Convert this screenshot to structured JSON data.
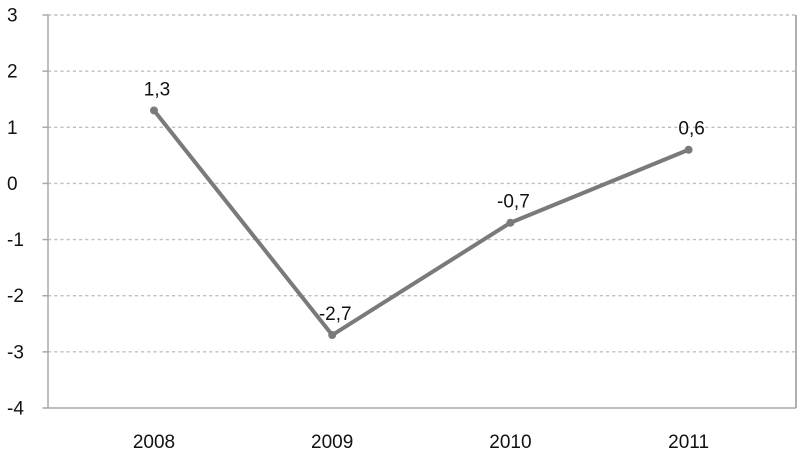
{
  "chart_data": {
    "type": "line",
    "title": "",
    "xlabel": "",
    "ylabel": "",
    "categories": [
      "2008",
      "2009",
      "2010",
      "2011"
    ],
    "series": [
      {
        "name": "value-by-year",
        "values": [
          1.3,
          -2.7,
          -0.7,
          0.6
        ],
        "point_labels": [
          "1,3",
          "-2,7",
          "-0,7",
          "0,6"
        ]
      }
    ],
    "ylim": [
      -4,
      3
    ],
    "ytick_step": 1,
    "ytick_labels": [
      "3",
      "2",
      "1",
      "0",
      "-1",
      "-2",
      "-3",
      "-4"
    ],
    "grid": "horizontal-dashed",
    "legend": "none",
    "colors": {
      "background": "#ffffff",
      "line": "#7a7a7a",
      "marker": "#7a7a7a",
      "gridline": "#c0c0c0",
      "axis": "#a8a8a8",
      "text": "#111111"
    }
  }
}
